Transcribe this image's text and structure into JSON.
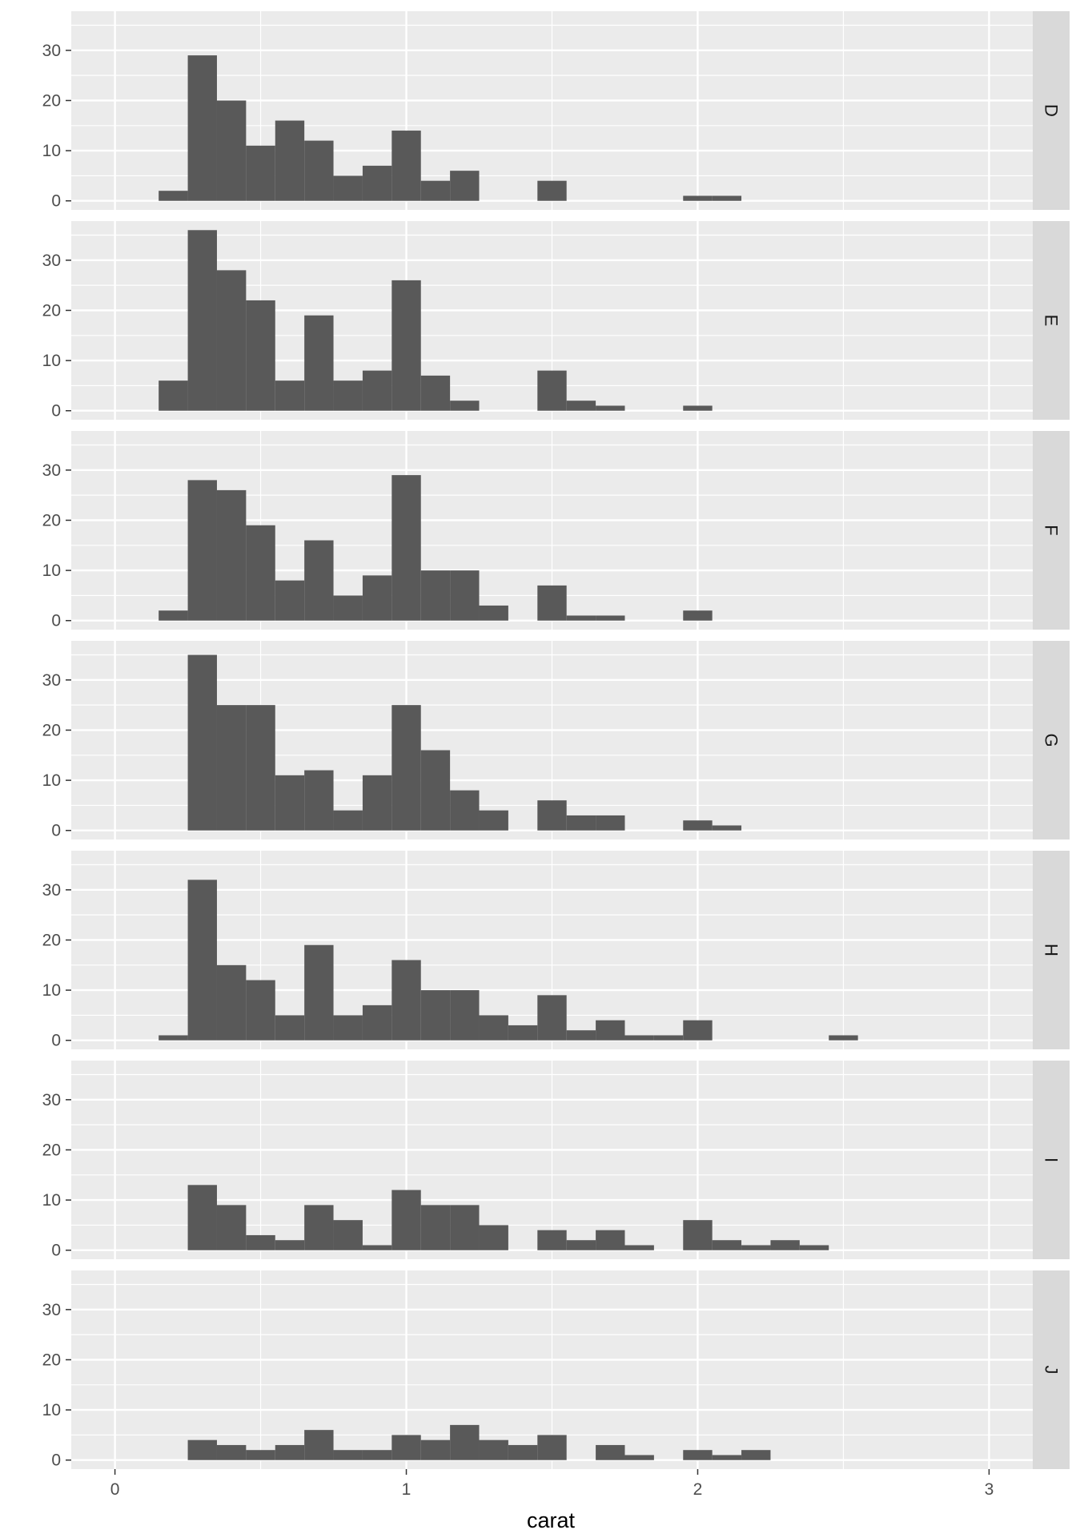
{
  "chart_data": {
    "type": "bar",
    "subtype": "histogram",
    "facet_direction": "rows",
    "title": "",
    "xlabel": "carat",
    "ylabel": "",
    "xlim": [
      -0.15,
      3.15
    ],
    "ylim": [
      -1.8,
      37.8
    ],
    "x_ticks": [
      0,
      1,
      2,
      3
    ],
    "y_ticks": [
      0,
      10,
      20,
      30
    ],
    "bin_width": 0.1,
    "bin_centers": [
      0.2,
      0.3,
      0.4,
      0.5,
      0.6,
      0.7,
      0.8,
      0.9,
      1.0,
      1.1,
      1.2,
      1.3,
      1.4,
      1.5,
      1.6,
      1.7,
      1.8,
      1.9,
      2.0,
      2.1,
      2.2,
      2.3,
      2.4,
      2.5
    ],
    "bar_color": "#595959",
    "panel_background": "#ebebeb",
    "strip_background": "#d9d9d9",
    "grid": true,
    "facets": [
      {
        "label": "D",
        "counts": [
          2,
          29,
          20,
          11,
          16,
          12,
          5,
          7,
          14,
          4,
          6,
          0,
          0,
          4,
          0,
          0,
          0,
          0,
          1,
          1,
          0,
          0,
          0,
          0
        ]
      },
      {
        "label": "E",
        "counts": [
          6,
          36,
          28,
          22,
          6,
          19,
          6,
          8,
          26,
          7,
          2,
          0,
          0,
          8,
          2,
          1,
          0,
          0,
          1,
          0,
          0,
          0,
          0,
          0
        ]
      },
      {
        "label": "F",
        "counts": [
          2,
          28,
          26,
          19,
          8,
          16,
          5,
          9,
          29,
          10,
          10,
          3,
          0,
          7,
          1,
          1,
          0,
          0,
          2,
          0,
          0,
          0,
          0,
          0
        ]
      },
      {
        "label": "G",
        "counts": [
          0,
          35,
          25,
          25,
          11,
          12,
          4,
          11,
          25,
          16,
          8,
          4,
          0,
          6,
          3,
          3,
          0,
          0,
          2,
          1,
          0,
          0,
          0,
          0
        ]
      },
      {
        "label": "H",
        "counts": [
          1,
          32,
          15,
          12,
          5,
          19,
          5,
          7,
          16,
          10,
          10,
          5,
          3,
          9,
          2,
          4,
          1,
          1,
          4,
          0,
          0,
          0,
          0,
          1
        ]
      },
      {
        "label": "I",
        "counts": [
          0,
          13,
          9,
          3,
          2,
          9,
          6,
          1,
          12,
          9,
          9,
          5,
          0,
          4,
          2,
          4,
          1,
          0,
          6,
          2,
          1,
          2,
          1,
          0
        ]
      },
      {
        "label": "J",
        "counts": [
          0,
          4,
          3,
          2,
          3,
          6,
          2,
          2,
          5,
          4,
          7,
          4,
          3,
          5,
          0,
          3,
          1,
          0,
          2,
          1,
          2,
          0,
          0,
          0
        ]
      }
    ]
  }
}
